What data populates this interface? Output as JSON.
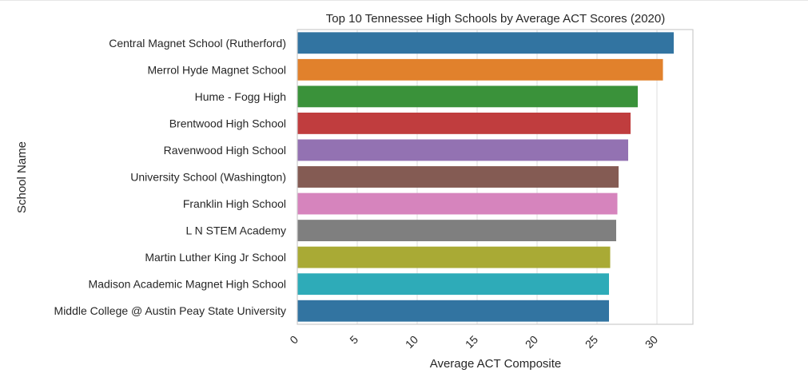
{
  "chart_data": {
    "type": "bar",
    "orientation": "horizontal",
    "title": "Top 10 Tennessee High Schools by Average ACT Scores (2020)",
    "xlabel": "Average ACT Composite",
    "ylabel": "School Name",
    "xlim": [
      0,
      33
    ],
    "xticks": [
      "0",
      "5",
      "10",
      "15",
      "20",
      "25",
      "30"
    ],
    "grid": true,
    "categories": [
      "Central Magnet School (Rutherford)",
      "Merrol Hyde Magnet School",
      "Hume - Fogg High",
      "Brentwood High School",
      "Ravenwood High School",
      "University School (Washington)",
      "Franklin High School",
      "L N STEM Academy",
      "Martin Luther King Jr School",
      "Madison Academic Magnet High School",
      "Middle College @ Austin Peay State University"
    ],
    "values": [
      31.4,
      30.5,
      28.4,
      27.8,
      27.6,
      26.8,
      26.7,
      26.6,
      26.1,
      26.0,
      26.0
    ],
    "colors": [
      "#3274a1",
      "#e1812c",
      "#3a923a",
      "#c03d3e",
      "#9372b2",
      "#845b53",
      "#d684bd",
      "#7f7f7f",
      "#a9aa35",
      "#2eabb8",
      "#3274a1"
    ]
  }
}
